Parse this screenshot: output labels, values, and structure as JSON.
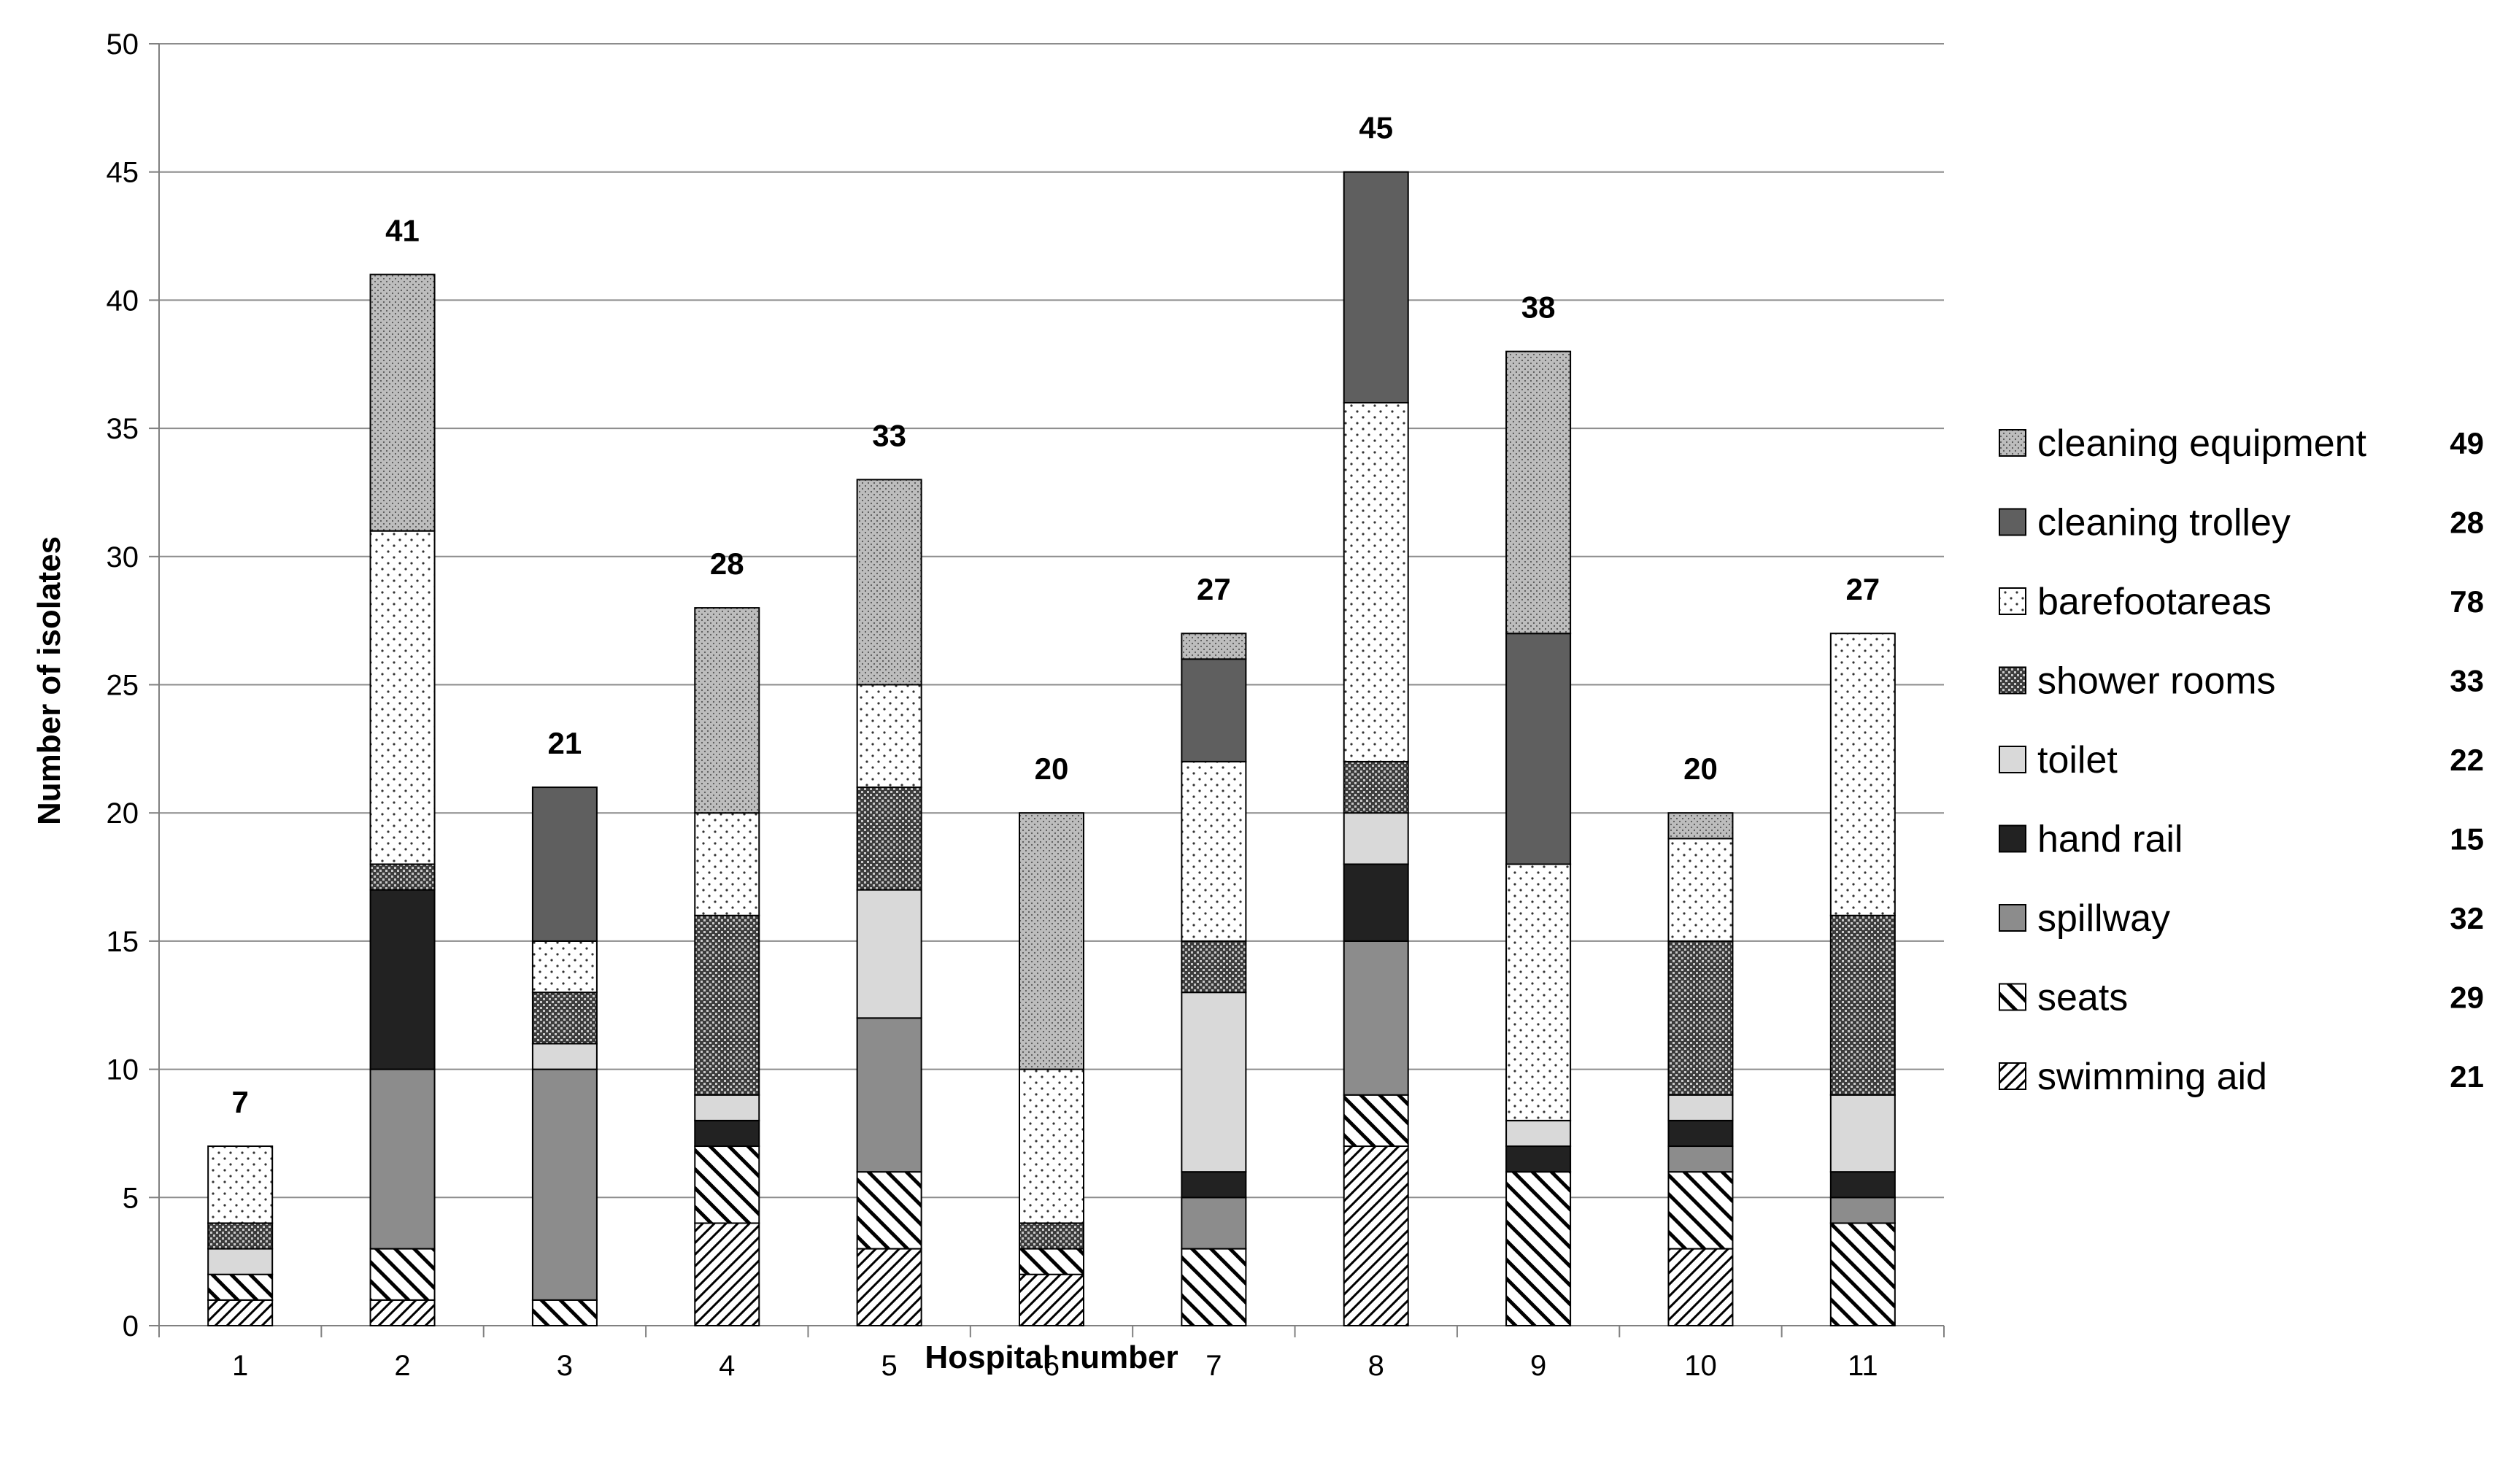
{
  "chart_data": {
    "type": "bar",
    "stacked": true,
    "title": "",
    "xlabel": "Hospital number",
    "ylabel": "Number of isolates",
    "ylim": [
      0,
      50
    ],
    "yticks": [
      0,
      5,
      10,
      15,
      20,
      25,
      30,
      35,
      40,
      45,
      50
    ],
    "grid": true,
    "legend_position": "right",
    "categories": [
      "1",
      "2",
      "3",
      "4",
      "5",
      "6",
      "7",
      "8",
      "9",
      "10",
      "11"
    ],
    "totals": [
      7,
      41,
      21,
      28,
      33,
      20,
      27,
      45,
      38,
      20,
      27
    ],
    "series": [
      {
        "name": "swimming aid",
        "total": 21,
        "pattern": "hatch-right",
        "values": [
          1,
          1,
          0,
          4,
          3,
          2,
          0,
          7,
          0,
          3,
          0
        ]
      },
      {
        "name": "seats",
        "total": 29,
        "pattern": "hatch-left",
        "values": [
          1,
          2,
          1,
          3,
          3,
          1,
          3,
          2,
          6,
          3,
          4
        ]
      },
      {
        "name": "spillway",
        "total": 32,
        "pattern": "solid-mid-gray",
        "values": [
          0,
          7,
          9,
          0,
          6,
          0,
          2,
          6,
          0,
          1,
          1
        ]
      },
      {
        "name": "hand rail",
        "total": 15,
        "pattern": "solid-black",
        "values": [
          0,
          7,
          0,
          1,
          0,
          0,
          1,
          3,
          1,
          1,
          1
        ]
      },
      {
        "name": "toilet",
        "total": 22,
        "pattern": "solid-light-gray",
        "values": [
          1,
          0,
          1,
          1,
          5,
          0,
          7,
          2,
          1,
          1,
          3
        ]
      },
      {
        "name": "shower rooms",
        "total": 33,
        "pattern": "dense-dots",
        "values": [
          1,
          1,
          2,
          7,
          4,
          1,
          2,
          2,
          0,
          6,
          7
        ]
      },
      {
        "name": "barefootareas",
        "total": 78,
        "pattern": "sparse-dots",
        "values": [
          3,
          13,
          2,
          4,
          4,
          6,
          7,
          14,
          10,
          4,
          11
        ]
      },
      {
        "name": "cleaning trolley",
        "total": 28,
        "pattern": "solid-dark-gray",
        "values": [
          0,
          0,
          6,
          0,
          0,
          0,
          4,
          9,
          9,
          0,
          0
        ]
      },
      {
        "name": "cleaning equipment",
        "total": 49,
        "pattern": "gray-dots",
        "values": [
          0,
          10,
          0,
          8,
          8,
          10,
          1,
          0,
          11,
          1,
          0
        ]
      }
    ]
  }
}
